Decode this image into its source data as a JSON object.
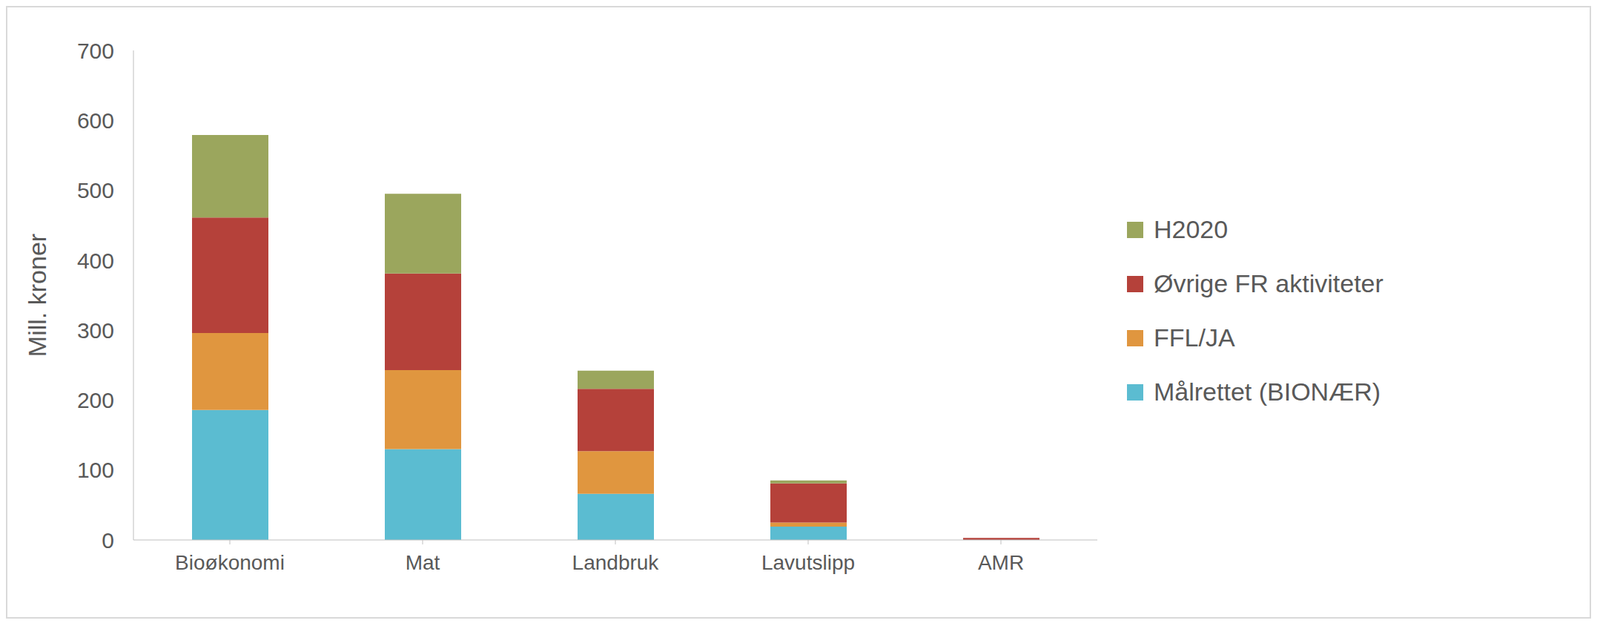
{
  "chart_data": {
    "type": "bar",
    "stacked": true,
    "y_label": "Mill. kroner",
    "categories": [
      "Bioøkonomi",
      "Mat",
      "Landbruk",
      "Lavutslipp",
      "AMR"
    ],
    "series": [
      {
        "name": "Målrettet (BIONÆR)",
        "color": "#5BBCD1",
        "values": [
          186,
          130,
          66,
          19,
          0
        ]
      },
      {
        "name": "FFL/JA",
        "color": "#E0963F",
        "values": [
          110,
          113,
          61,
          6,
          0
        ]
      },
      {
        "name": "Øvrige FR aktiviteter",
        "color": "#B5413A",
        "values": [
          165,
          138,
          89,
          56,
          3
        ]
      },
      {
        "name": "H2020",
        "color": "#9BA65D",
        "values": [
          118,
          114,
          26,
          4,
          0
        ]
      }
    ],
    "ylim": [
      0,
      700
    ],
    "yticks": [
      0,
      100,
      200,
      300,
      400,
      500,
      600,
      700
    ],
    "grid": false,
    "legend": "right"
  }
}
